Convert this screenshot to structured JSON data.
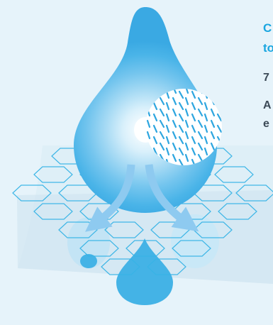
{
  "headline": {
    "line1": "C",
    "line2": "to"
  },
  "stat": "7",
  "body": {
    "line1": "A",
    "line2": "e"
  },
  "colors": {
    "background": "#e6f3fa",
    "accent": "#1aa6e0",
    "text": "#3c4a57",
    "drop_outer": "#44b3e6",
    "drop_inner": "#ffffff",
    "mesh_stroke": "#38b4e6",
    "arrow": "#8ecaf0"
  },
  "icons": {
    "main": "water-drop-icon",
    "magnifier": "fiber-texture-icon",
    "mesh": "hexagon-mesh-icon",
    "arrows": "flow-arrow-icon"
  }
}
